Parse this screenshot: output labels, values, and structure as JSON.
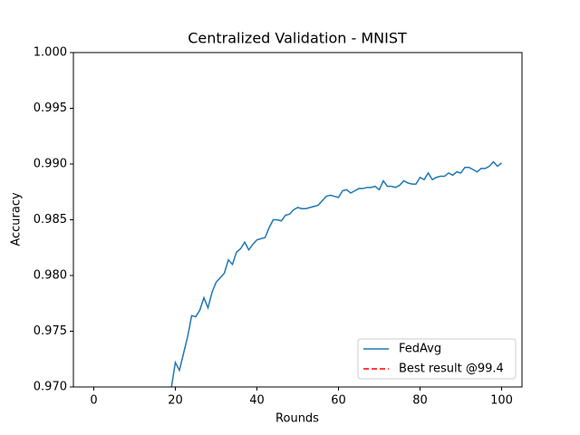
{
  "chart_data": {
    "type": "line",
    "title": "Centralized Validation - MNIST",
    "x_label": "Rounds",
    "y_label": "Accuracy",
    "xlim": [
      -5,
      105
    ],
    "ylim": [
      0.97,
      1.0
    ],
    "xticks": [
      0,
      20,
      40,
      60,
      80,
      100
    ],
    "yticks": [
      {
        "value": 0.97,
        "label": "0.970"
      },
      0.975,
      {
        "value": 0.98,
        "label": "0.980"
      },
      0.985,
      {
        "value": 0.99,
        "label": "0.990"
      },
      0.995,
      {
        "value": 1.0,
        "label": "1.000"
      }
    ],
    "legend_loc": "lower right",
    "x": [
      18,
      19,
      20,
      21,
      22,
      23,
      24,
      25,
      26,
      27,
      28,
      29,
      30,
      31,
      32,
      33,
      34,
      35,
      36,
      37,
      38,
      39,
      40,
      41,
      42,
      43,
      44,
      45,
      46,
      47,
      48,
      49,
      50,
      51,
      52,
      53,
      54,
      55,
      56,
      57,
      58,
      59,
      60,
      61,
      62,
      63,
      64,
      65,
      66,
      67,
      68,
      69,
      70,
      71,
      72,
      73,
      74,
      75,
      76,
      77,
      78,
      79,
      80,
      81,
      82,
      83,
      84,
      85,
      86,
      87,
      88,
      89,
      90,
      91,
      92,
      93,
      94,
      95,
      96,
      97,
      98,
      99,
      100
    ],
    "series": [
      {
        "name": "FedAvg",
        "color": "#1f77b4",
        "values": [
          0.9688,
          0.9699,
          0.9722,
          0.9715,
          0.973,
          0.9745,
          0.9764,
          0.9763,
          0.9769,
          0.978,
          0.9771,
          0.9785,
          0.9794,
          0.9798,
          0.9802,
          0.9814,
          0.981,
          0.9821,
          0.9824,
          0.983,
          0.9823,
          0.9828,
          0.9832,
          0.9833,
          0.9834,
          0.9843,
          0.985,
          0.985,
          0.9849,
          0.9854,
          0.9855,
          0.9859,
          0.9861,
          0.986,
          0.986,
          0.9861,
          0.9862,
          0.9863,
          0.9867,
          0.9871,
          0.9872,
          0.9871,
          0.987,
          0.9876,
          0.9877,
          0.9874,
          0.9876,
          0.9878,
          0.9878,
          0.9879,
          0.9879,
          0.988,
          0.9877,
          0.9885,
          0.988,
          0.988,
          0.9879,
          0.9881,
          0.9885,
          0.9883,
          0.9882,
          0.9882,
          0.9888,
          0.9886,
          0.9892,
          0.9886,
          0.9888,
          0.9889,
          0.9889,
          0.9892,
          0.989,
          0.9893,
          0.9892,
          0.9897,
          0.9897,
          0.9895,
          0.9893,
          0.9896,
          0.9896,
          0.9898,
          0.9902,
          0.9898,
          0.9901
        ]
      },
      {
        "name": "Best result @99.4",
        "color": "#ff0000",
        "dashed": true,
        "y": 99.4
      }
    ]
  }
}
